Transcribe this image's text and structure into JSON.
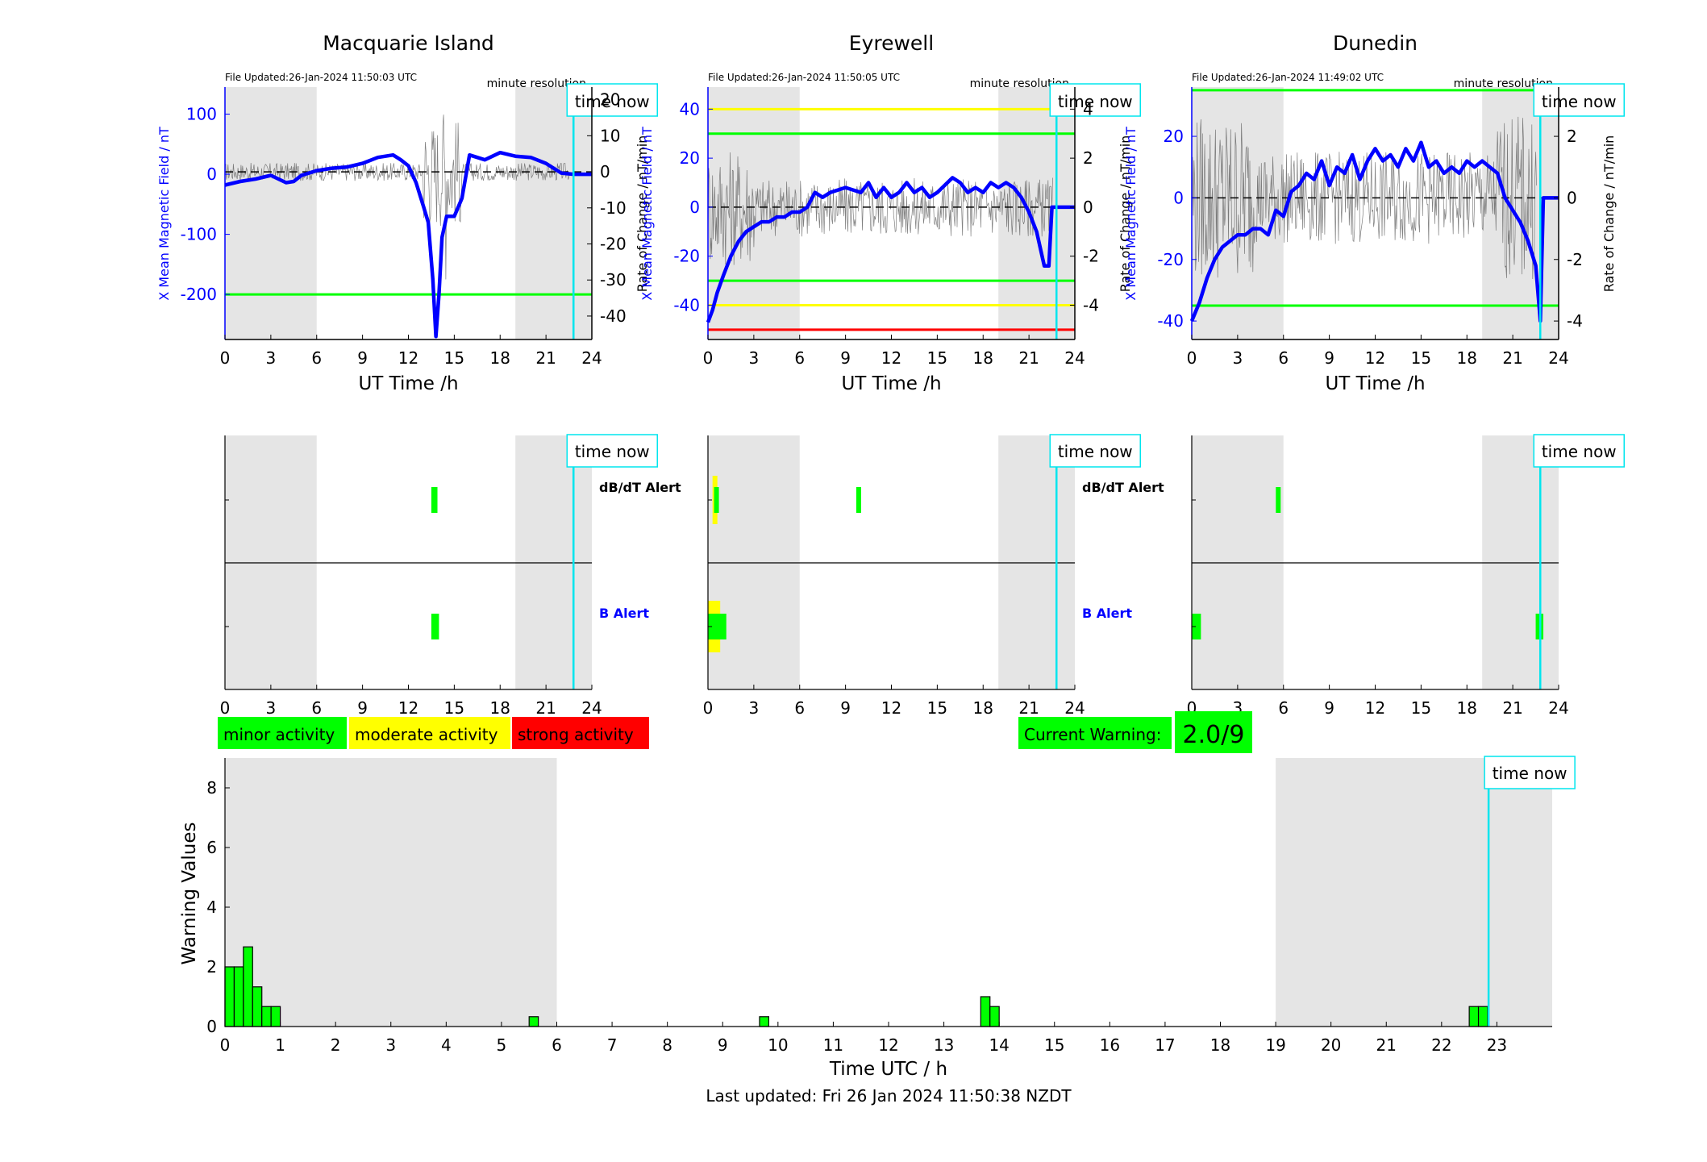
{
  "footer": {
    "last_updated": "Last updated: Fri 26 Jan 2024 11:50:38 NZDT"
  },
  "common": {
    "x_axis_label": "UT Time /h",
    "left_axis_label": "X Mean Magnetic Field / nT",
    "right_axis_label": "Rate of Change / nT/min",
    "resolution": "minute resolution",
    "time_now_label": "time now",
    "x_ticks": [
      0,
      3,
      6,
      9,
      12,
      15,
      18,
      21,
      24
    ],
    "xlim": [
      0,
      24
    ],
    "shaded_hours": [
      [
        0,
        6
      ],
      [
        19,
        24
      ]
    ],
    "time_now_hour": 22.8,
    "alert_labels": {
      "dbdt": "dB/dT Alert",
      "b": "B Alert"
    }
  },
  "legend": {
    "items": [
      {
        "label": "minor activity",
        "color": "#00ff00"
      },
      {
        "label": "moderate activity",
        "color": "#ffff00"
      },
      {
        "label": "strong activity",
        "color": "#ff0000"
      }
    ]
  },
  "current_warning": {
    "label": "Current Warning:",
    "value": "2.0/9",
    "color": "#00ff00"
  },
  "colors": {
    "field": "#0000ff",
    "now_line": "#00e5ee",
    "shade": "#e5e5e5",
    "minor": "#00ff00",
    "moderate": "#ffff00",
    "strong": "#ff0000"
  },
  "chart_data": [
    {
      "type": "line",
      "title": "Macquarie Island",
      "file_updated": "File Updated:26-Jan-2024 11:50:03 UTC",
      "xlabel": "UT Time /h",
      "ylabel": "X Mean Magnetic Field / nT",
      "ylabel_right": "Rate of Change / nT/min",
      "xlim": [
        0,
        24
      ],
      "ylim": [
        -275,
        145
      ],
      "yticks": [
        100,
        0,
        -100,
        -200
      ],
      "ylim_right": [
        -46.5,
        23.5
      ],
      "yticks_right": [
        20,
        10,
        0,
        -10,
        -20,
        -30,
        -40
      ],
      "thresholds": [
        {
          "y": -200,
          "color": "#00ff00"
        }
      ],
      "series": [
        {
          "x": [
            0,
            1,
            2,
            3,
            4,
            4.5,
            5,
            6,
            7,
            8,
            9,
            10,
            10.5,
            11,
            11.5,
            12,
            12.5,
            13,
            13.3,
            13.6,
            13.8,
            14.0,
            14.2,
            14.5,
            15,
            15.5,
            16,
            17,
            18,
            19,
            20,
            21,
            22,
            22.8,
            23,
            24
          ],
          "y": [
            -18,
            -12,
            -8,
            -2,
            -14,
            -12,
            -2,
            6,
            10,
            12,
            18,
            28,
            30,
            32,
            24,
            14,
            -14,
            -55,
            -80,
            -175,
            -270,
            -200,
            -105,
            -70,
            -70,
            -40,
            32,
            24,
            36,
            30,
            28,
            18,
            2,
            0,
            0,
            0
          ]
        }
      ],
      "alerts": {
        "dbdt": [
          {
            "start": 13.5,
            "end": 13.9,
            "level": "minor"
          }
        ],
        "b": [
          {
            "start": 13.5,
            "end": 14.0,
            "level": "minor"
          }
        ]
      }
    },
    {
      "type": "line",
      "title": "Eyrewell",
      "file_updated": "File Updated:26-Jan-2024 11:50:05 UTC",
      "xlabel": "UT Time /h",
      "ylabel": "X Mean Magnetic Field / nT",
      "ylabel_right": "Rate of Change / nT/min",
      "xlim": [
        0,
        24
      ],
      "ylim": [
        -54,
        49
      ],
      "yticks": [
        40,
        20,
        0,
        -20,
        -40
      ],
      "ylim_right": [
        -5.4,
        4.9
      ],
      "yticks_right": [
        4,
        2,
        0,
        -2,
        -4
      ],
      "thresholds": [
        {
          "y": 40,
          "color": "#ffff00"
        },
        {
          "y": 30,
          "color": "#00ff00"
        },
        {
          "y": -30,
          "color": "#00ff00"
        },
        {
          "y": -40,
          "color": "#ffff00"
        },
        {
          "y": -50,
          "color": "#ff0000"
        }
      ],
      "series": [
        {
          "x": [
            0,
            0.3,
            0.6,
            1,
            1.5,
            2,
            2.5,
            3,
            3.5,
            4,
            4.5,
            5,
            5.5,
            6,
            6.5,
            7,
            7.5,
            8,
            9,
            10,
            10.5,
            11,
            11.5,
            12,
            12.5,
            13,
            13.5,
            14,
            14.5,
            15,
            16,
            16.5,
            17,
            17.5,
            18,
            18.5,
            19,
            19.5,
            20,
            20.5,
            21,
            21.5,
            22,
            22.3,
            22.5,
            23,
            24
          ],
          "y": [
            -47,
            -42,
            -35,
            -28,
            -20,
            -14,
            -10,
            -8,
            -6,
            -6,
            -4,
            -4,
            -2,
            -2,
            0,
            6,
            4,
            6,
            8,
            6,
            10,
            4,
            8,
            4,
            6,
            10,
            6,
            8,
            4,
            6,
            12,
            10,
            6,
            8,
            6,
            10,
            8,
            10,
            8,
            4,
            -2,
            -10,
            -24,
            -24,
            0,
            0,
            0
          ]
        }
      ],
      "alerts": {
        "dbdt": [
          {
            "start": 0.3,
            "end": 0.6,
            "level": "moderate"
          },
          {
            "start": 0.4,
            "end": 0.6,
            "level": "minor"
          },
          {
            "start": 9.7,
            "end": 10.0,
            "level": "minor"
          }
        ],
        "b": [
          {
            "start": 0,
            "end": 0.8,
            "level": "moderate"
          },
          {
            "start": 0,
            "end": 1.2,
            "level": "minor"
          }
        ]
      }
    },
    {
      "type": "line",
      "title": "Dunedin",
      "file_updated": "File Updated:26-Jan-2024 11:49:02 UTC",
      "xlabel": "UT Time /h",
      "ylabel": "X Mean Magnetic Field / nT",
      "ylabel_right": "Rate of Change / nT/min",
      "xlim": [
        0,
        24
      ],
      "ylim": [
        -46,
        36
      ],
      "yticks": [
        20,
        0,
        -20,
        -40
      ],
      "ylim_right": [
        -4.6,
        3.6
      ],
      "yticks_right": [
        2,
        0,
        -2,
        -4
      ],
      "thresholds": [
        {
          "y": 35,
          "color": "#00ff00"
        },
        {
          "y": -35,
          "color": "#00ff00"
        }
      ],
      "series": [
        {
          "x": [
            0,
            0.5,
            1,
            1.5,
            2,
            2.5,
            3,
            3.5,
            4,
            4.5,
            5,
            5.5,
            6,
            6.5,
            7,
            7.5,
            8,
            8.5,
            9,
            9.5,
            10,
            10.5,
            11,
            11.5,
            12,
            12.5,
            13,
            13.5,
            14,
            14.5,
            15,
            15.5,
            16,
            16.5,
            17,
            17.5,
            18,
            18.5,
            19,
            19.5,
            20,
            20.5,
            21,
            21.5,
            22,
            22.5,
            22.8,
            23,
            24
          ],
          "y": [
            -40,
            -34,
            -26,
            -20,
            -16,
            -14,
            -12,
            -12,
            -10,
            -10,
            -12,
            -4,
            -6,
            2,
            4,
            8,
            6,
            12,
            4,
            10,
            8,
            14,
            6,
            12,
            16,
            12,
            14,
            10,
            16,
            12,
            18,
            10,
            12,
            8,
            10,
            8,
            12,
            10,
            12,
            10,
            8,
            0,
            -4,
            -8,
            -14,
            -22,
            -40,
            0,
            0
          ]
        }
      ],
      "alerts": {
        "dbdt": [
          {
            "start": 5.5,
            "end": 5.8,
            "level": "minor"
          }
        ],
        "b": [
          {
            "start": 0,
            "end": 0.6,
            "level": "minor"
          },
          {
            "start": 22.5,
            "end": 23.0,
            "level": "minor"
          }
        ]
      }
    },
    {
      "type": "bar",
      "xlabel": "Time UTC / h",
      "ylabel": "Warning Values",
      "xlim": [
        0,
        24
      ],
      "ylim": [
        0,
        9
      ],
      "x_ticks": [
        0,
        1,
        2,
        3,
        4,
        5,
        6,
        7,
        8,
        9,
        10,
        11,
        12,
        13,
        14,
        15,
        16,
        17,
        18,
        19,
        20,
        21,
        22,
        23
      ],
      "y_ticks": [
        0,
        2,
        4,
        6,
        8
      ],
      "shaded_hours": [
        [
          0,
          6
        ],
        [
          19,
          24
        ]
      ],
      "time_now_hour": 22.85,
      "bin_width_hours": 0.1667,
      "bins": [
        {
          "start": 0.0,
          "value": 2.0
        },
        {
          "start": 0.1667,
          "value": 2.0
        },
        {
          "start": 0.3333,
          "value": 2.67
        },
        {
          "start": 0.5,
          "value": 1.33
        },
        {
          "start": 0.6667,
          "value": 0.67
        },
        {
          "start": 0.8333,
          "value": 0.67
        },
        {
          "start": 5.5,
          "value": 0.33
        },
        {
          "start": 9.6667,
          "value": 0.33
        },
        {
          "start": 13.6667,
          "value": 1.0
        },
        {
          "start": 13.8333,
          "value": 0.67
        },
        {
          "start": 22.5,
          "value": 0.67
        },
        {
          "start": 22.6667,
          "value": 0.67
        }
      ]
    }
  ]
}
